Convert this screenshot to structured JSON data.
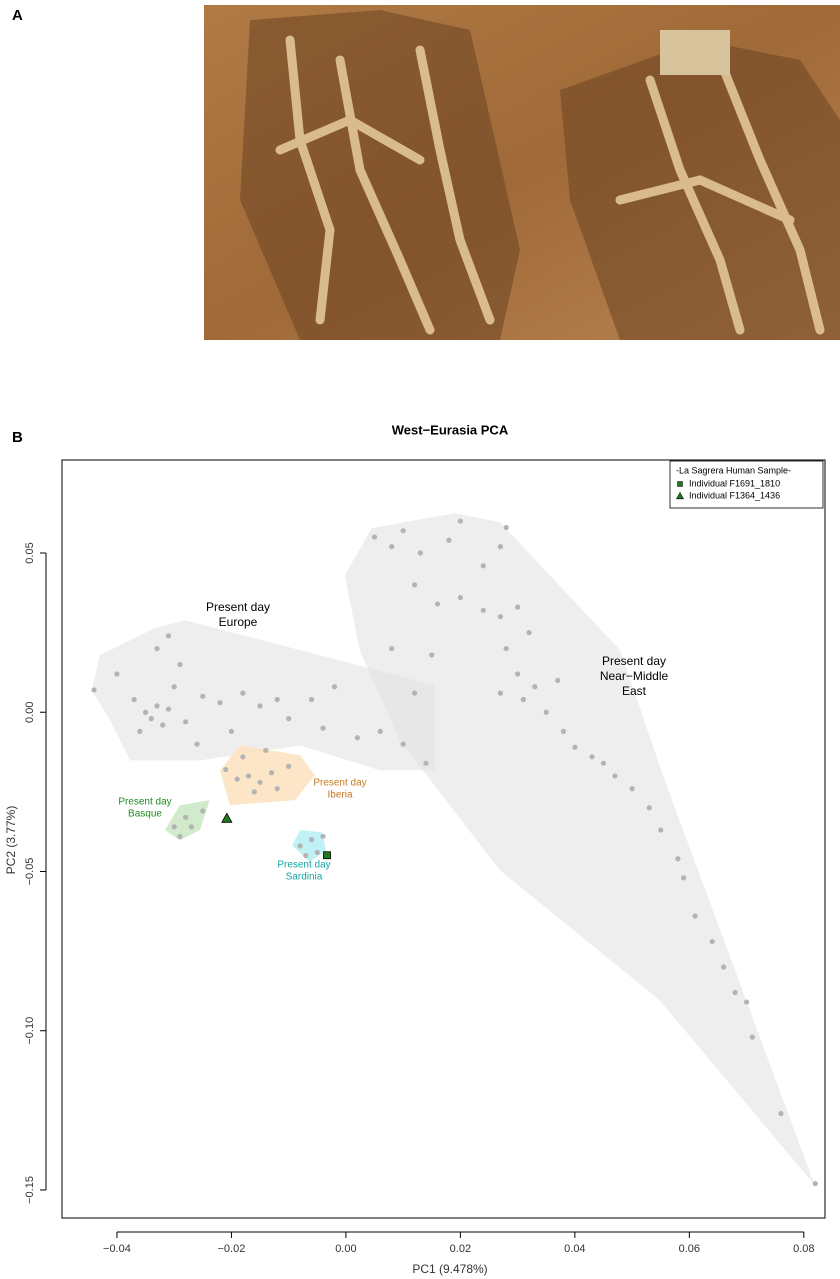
{
  "panel_labels": [
    "A",
    "B"
  ],
  "chart_data": {
    "type": "scatter",
    "title": "West−Eurasia PCA",
    "x_label": "PC1 (9.478%)",
    "y_label": "PC2 (3.77%)",
    "xlim": [
      -0.0496,
      0.0837
    ],
    "ylim": [
      -0.1588,
      0.0792
    ],
    "xticks": [
      {
        "value": -0.04,
        "label": "−0.04"
      },
      {
        "value": -0.02,
        "label": "−0.02"
      },
      {
        "value": 0,
        "label": "0.00"
      },
      {
        "value": 0.02,
        "label": "0.02"
      },
      {
        "value": 0.04,
        "label": "0.04"
      },
      {
        "value": 0.06,
        "label": "0.06"
      },
      {
        "value": 0.08,
        "label": "0.08"
      }
    ],
    "yticks": [
      {
        "value": 0.05,
        "label": "0.05"
      },
      {
        "value": 0,
        "label": "0.00"
      },
      {
        "value": -0.05,
        "label": "−0.05"
      },
      {
        "value": -0.1,
        "label": "−0.10"
      },
      {
        "value": -0.15,
        "label": "−0.15"
      }
    ],
    "point_color": "#b3b3b3",
    "points": {
      "x": [
        -0.044,
        -0.04,
        -0.037,
        -0.035,
        -0.034,
        -0.033,
        -0.032,
        -0.031,
        -0.03,
        -0.033,
        -0.031,
        -0.029,
        -0.036,
        -0.028,
        -0.025,
        -0.022,
        -0.02,
        -0.018,
        -0.015,
        -0.012,
        -0.01,
        -0.006,
        -0.004,
        -0.002,
        0.002,
        0.006,
        0.01,
        0.014,
        -0.026,
        -0.014,
        -0.021,
        -0.019,
        -0.017,
        -0.015,
        -0.013,
        -0.016,
        -0.012,
        -0.01,
        -0.018,
        -0.03,
        -0.028,
        -0.027,
        -0.025,
        -0.029,
        -0.008,
        -0.006,
        -0.005,
        -0.007,
        -0.004,
        0.005,
        0.008,
        0.01,
        0.013,
        0.018,
        0.02,
        0.024,
        0.027,
        0.028,
        0.012,
        0.016,
        0.02,
        0.024,
        0.027,
        0.03,
        0.032,
        0.028,
        0.03,
        0.027,
        0.031,
        0.033,
        0.035,
        0.037,
        0.038,
        0.04,
        0.043,
        0.045,
        0.047,
        0.05,
        0.053,
        0.055,
        0.058,
        0.059,
        0.061,
        0.064,
        0.066,
        0.068,
        0.07,
        0.071,
        0.076,
        0.082,
        0.008,
        0.015,
        0.012
      ],
      "y": [
        0.007,
        0.012,
        0.004,
        0.0,
        -0.002,
        0.002,
        -0.004,
        0.001,
        0.008,
        0.02,
        0.024,
        0.015,
        -0.006,
        -0.003,
        0.005,
        0.003,
        -0.006,
        0.006,
        0.002,
        0.004,
        -0.002,
        0.004,
        -0.005,
        0.008,
        -0.008,
        -0.006,
        -0.01,
        -0.016,
        -0.01,
        -0.012,
        -0.018,
        -0.021,
        -0.02,
        -0.022,
        -0.019,
        -0.025,
        -0.024,
        -0.017,
        -0.014,
        -0.036,
        -0.033,
        -0.036,
        -0.031,
        -0.039,
        -0.042,
        -0.04,
        -0.044,
        -0.045,
        -0.039,
        0.055,
        0.052,
        0.057,
        0.05,
        0.054,
        0.06,
        0.046,
        0.052,
        0.058,
        0.04,
        0.034,
        0.036,
        0.032,
        0.03,
        0.033,
        0.025,
        0.02,
        0.012,
        0.006,
        0.004,
        0.008,
        0.0,
        0.01,
        -0.006,
        -0.011,
        -0.014,
        -0.016,
        -0.02,
        -0.024,
        -0.03,
        -0.037,
        -0.046,
        -0.052,
        -0.064,
        -0.072,
        -0.08,
        -0.088,
        -0.091,
        -0.102,
        -0.126,
        -0.148,
        0.02,
        0.018,
        0.006
      ]
    },
    "regions": [
      {
        "label": [
          "Present day",
          "Europe"
        ],
        "color": "#e3e3e3",
        "text_color": "#000000",
        "x": [
          -0.0444,
          -0.043,
          -0.0334,
          -0.0281,
          -0.008,
          0.0155,
          0.0155,
          0.0059,
          -0.008,
          -0.0255,
          -0.0377,
          -0.0412
        ],
        "y": [
          0.0069,
          0.0179,
          0.0264,
          0.0289,
          0.0195,
          0.0085,
          -0.0182,
          -0.0182,
          -0.0104,
          -0.0151,
          -0.0151,
          -0.0025
        ]
      },
      {
        "label": [
          "Present day",
          "Near−Middle",
          "East"
        ],
        "color": "#e3e3e3",
        "text_color": "#000000",
        "x": [
          -0.0002,
          0.0045,
          0.019,
          0.0269,
          0.0479,
          0.0557,
          0.0819,
          0.0548,
          0.0269,
          0.0094,
          0.0024
        ],
        "y": [
          0.043,
          0.0578,
          0.0625,
          0.0597,
          0.0195,
          -0.0214,
          -0.1485,
          -0.0904,
          -0.0496,
          -0.0088,
          0.0195
        ]
      },
      {
        "label": [
          "Present day",
          "Iberia"
        ],
        "color": "#fde2bd",
        "text_color": "#c47a22",
        "x": [
          -0.022,
          -0.0185,
          -0.008,
          -0.0054,
          -0.0089,
          -0.0203
        ],
        "y": [
          -0.0182,
          -0.0104,
          -0.0135,
          -0.0198,
          -0.0276,
          -0.0292
        ]
      },
      {
        "label": [
          "Present day",
          "Basque"
        ],
        "color": "#c9e6c2",
        "text_color": "#1e8c1e",
        "x": [
          -0.0316,
          -0.029,
          -0.0238,
          -0.0255,
          -0.029
        ],
        "y": [
          -0.037,
          -0.0292,
          -0.0276,
          -0.037,
          -0.0402
        ]
      },
      {
        "label": [
          "Present day",
          "Sardinia"
        ],
        "color": "#b5eef3",
        "text_color": "#13a5a5",
        "x": [
          -0.0094,
          -0.008,
          -0.0042,
          -0.0035,
          -0.0063
        ],
        "y": [
          -0.0418,
          -0.037,
          -0.0377,
          -0.0433,
          -0.0471
        ]
      }
    ],
    "legend_title": "-La Sagrera Human Sample-",
    "legend_position": "top-right",
    "series": [
      {
        "name": "Individual F1691_1810",
        "color": "#1f7a1f",
        "marker": "square",
        "x": [
          -0.0033
        ],
        "y": [
          -0.0449
        ]
      },
      {
        "name": "Individual F1364_1436",
        "color": "#1f7a1f",
        "marker": "triangle",
        "x": [
          -0.0208
        ],
        "y": [
          -0.0333
        ]
      }
    ]
  }
}
